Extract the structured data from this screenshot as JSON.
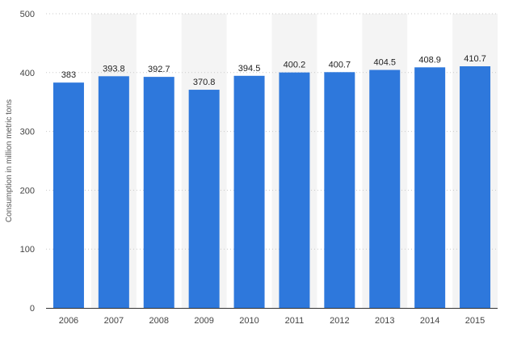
{
  "chart_data": {
    "type": "bar",
    "categories": [
      "2006",
      "2007",
      "2008",
      "2009",
      "2010",
      "2011",
      "2012",
      "2013",
      "2014",
      "2015"
    ],
    "values": [
      383,
      393.8,
      392.7,
      370.8,
      394.5,
      400.2,
      400.7,
      404.5,
      408.9,
      410.7
    ],
    "value_labels": [
      "383",
      "393.8",
      "392.7",
      "370.8",
      "394.5",
      "400.2",
      "400.7",
      "404.5",
      "408.9",
      "410.7"
    ],
    "ylabel": "Consumption in million metric tons",
    "ylim": [
      0,
      500
    ],
    "yticks": [
      "0",
      "100",
      "200",
      "300",
      "400",
      "500"
    ],
    "grid": true,
    "colors": {
      "bar": "#2e78dc",
      "band": "#f4f4f4"
    }
  }
}
